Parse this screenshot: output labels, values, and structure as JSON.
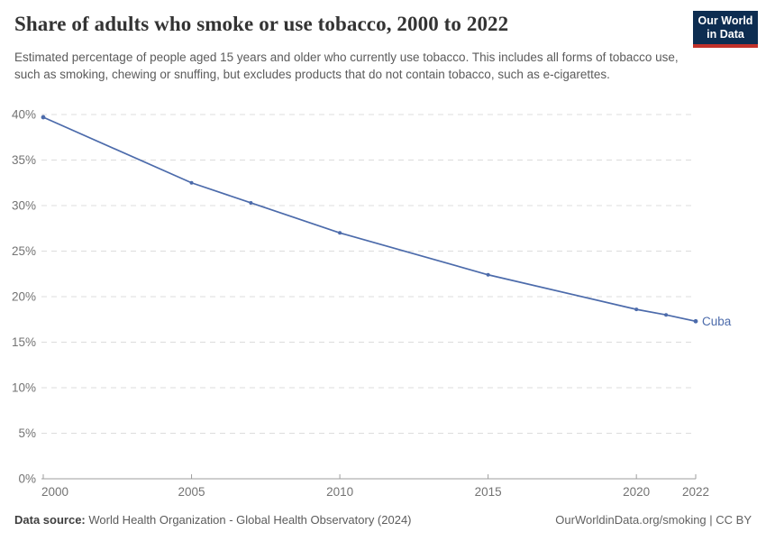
{
  "header": {
    "title": "Share of adults who smoke or use tobacco, 2000 to 2022",
    "subtitle": "Estimated percentage of people aged 15 years and older who currently use tobacco. This includes all forms of tobacco use, such as smoking, chewing or snuffing, but excludes products that do not contain tobacco, such as e-cigarettes."
  },
  "logo": {
    "line1": "Our World",
    "line2": "in Data",
    "bg_color": "#0d2d51",
    "stripe_color": "#c1312a"
  },
  "chart_data": {
    "type": "line",
    "title": "Share of adults who smoke or use tobacco, 2000 to 2022",
    "xlabel": "",
    "ylabel": "",
    "xlim": [
      2000,
      2022
    ],
    "ylim": [
      0,
      40
    ],
    "grid": "horizontal-dashed",
    "legend_position": "end-of-line",
    "xticks": [
      2000,
      2005,
      2010,
      2015,
      2020,
      2022
    ],
    "yticks": [
      0,
      5,
      10,
      15,
      20,
      25,
      30,
      35,
      40
    ],
    "ytick_format": "{v}%",
    "series": [
      {
        "name": "Cuba",
        "color": "#4c6bab",
        "x": [
          2000,
          2005,
          2007,
          2010,
          2015,
          2020,
          2021,
          2022
        ],
        "values": [
          39.7,
          32.5,
          30.3,
          27.0,
          22.4,
          18.6,
          18.0,
          17.3
        ]
      }
    ],
    "colors": {
      "grid": "#dcdcdc",
      "axis": "#9e9e9e",
      "tick_label": "#737373"
    }
  },
  "footer": {
    "datasource_label": "Data source:",
    "datasource_value": " World Health Organization - Global Health Observatory (2024)",
    "rights": "OurWorldinData.org/smoking | CC BY"
  }
}
